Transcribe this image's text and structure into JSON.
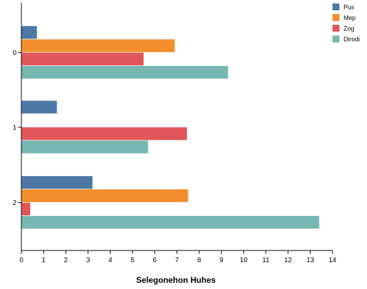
{
  "chart_data": {
    "type": "bar",
    "orientation": "horizontal",
    "categories": [
      "0",
      "1",
      "2"
    ],
    "series": [
      {
        "name": "Pus",
        "color": "#4e79a7",
        "values": [
          0.7,
          1.6,
          3.2
        ]
      },
      {
        "name": "Mep",
        "color": "#f28e2b",
        "values": [
          6.9,
          0,
          7.5
        ]
      },
      {
        "name": "Zog",
        "color": "#e15759",
        "values": [
          5.5,
          7.45,
          0.4
        ]
      },
      {
        "name": "Dirodi",
        "color": "#76b7b2",
        "values": [
          9.3,
          5.7,
          13.4
        ]
      }
    ],
    "xlabel": "Selegonehon Huhes",
    "xlim": [
      0,
      14
    ],
    "xticks": [
      0,
      1,
      2,
      3,
      4,
      5,
      6,
      7,
      8,
      9,
      10,
      11,
      12,
      13,
      14
    ],
    "grid": false,
    "legend_position": "top-right"
  }
}
